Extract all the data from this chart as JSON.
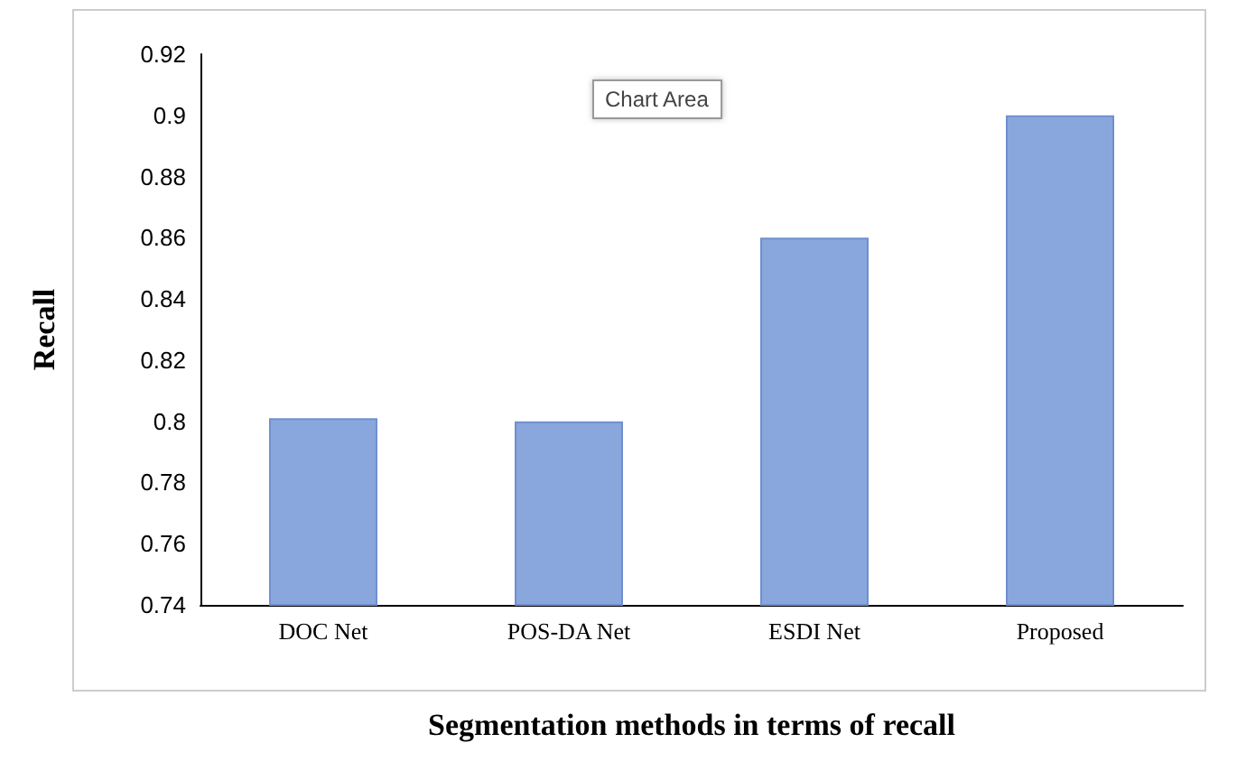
{
  "chart_data": {
    "type": "bar",
    "ylabel": "Recall",
    "xlabel": "Segmentation methods in terms of recall",
    "categories": [
      "DOC Net",
      "POS-DA Net",
      "ESDI Net",
      "Proposed"
    ],
    "values": [
      0.801,
      0.8,
      0.86,
      0.9
    ],
    "color": "#89a7dd",
    "ylim": [
      0.74,
      0.92
    ],
    "yticks": [
      0.74,
      0.76,
      0.78,
      0.8,
      0.82,
      0.84,
      0.86,
      0.88,
      0.9,
      0.92
    ],
    "annotations": [
      "Chart Area"
    ],
    "grid": false
  }
}
